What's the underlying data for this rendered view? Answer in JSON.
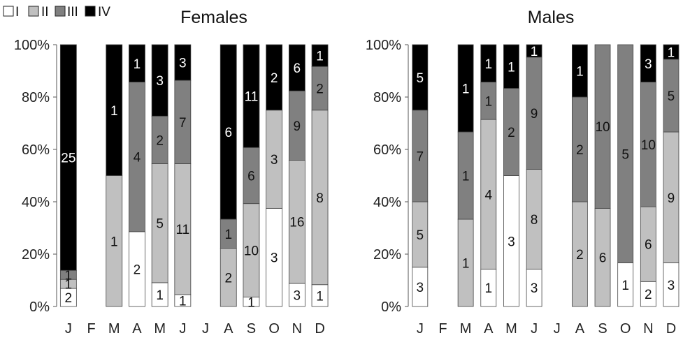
{
  "legend": {
    "entries": [
      {
        "label": "I",
        "color": "#ffffff"
      },
      {
        "label": "II",
        "color": "#c0c0c0"
      },
      {
        "label": "III",
        "color": "#808080"
      },
      {
        "label": "IV",
        "color": "#000000"
      }
    ]
  },
  "chart_data": [
    {
      "type": "bar",
      "stacked": true,
      "normalized_percent": true,
      "title": "Females",
      "categories": [
        "J",
        "F",
        "M",
        "A",
        "M",
        "J",
        "J",
        "A",
        "S",
        "O",
        "N",
        "D"
      ],
      "ylim": [
        0,
        100
      ],
      "y_ticks": [
        "0%",
        "20%",
        "40%",
        "60%",
        "80%",
        "100%"
      ],
      "grid": false,
      "series": [
        {
          "name": "I",
          "values": [
            2,
            0,
            0,
            2,
            1,
            1,
            0,
            0,
            1,
            3,
            3,
            1
          ]
        },
        {
          "name": "II",
          "values": [
            1,
            0,
            1,
            0,
            5,
            11,
            0,
            2,
            10,
            3,
            16,
            8
          ]
        },
        {
          "name": "III",
          "values": [
            1,
            0,
            0,
            4,
            2,
            7,
            0,
            1,
            6,
            0,
            9,
            2
          ]
        },
        {
          "name": "IV",
          "values": [
            25,
            0,
            1,
            1,
            3,
            3,
            0,
            6,
            11,
            2,
            6,
            1
          ]
        }
      ]
    },
    {
      "type": "bar",
      "stacked": true,
      "normalized_percent": true,
      "title": "Males",
      "categories": [
        "J",
        "F",
        "M",
        "A",
        "M",
        "J",
        "J",
        "A",
        "S",
        "O",
        "N",
        "D"
      ],
      "ylim": [
        0,
        100
      ],
      "y_ticks": [
        "0%",
        "20%",
        "40%",
        "60%",
        "80%",
        "100%"
      ],
      "grid": false,
      "series": [
        {
          "name": "I",
          "values": [
            3,
            0,
            0,
            1,
            3,
            3,
            0,
            0,
            0,
            1,
            2,
            3
          ]
        },
        {
          "name": "II",
          "values": [
            5,
            0,
            1,
            4,
            0,
            8,
            0,
            2,
            6,
            0,
            6,
            9
          ]
        },
        {
          "name": "III",
          "values": [
            7,
            0,
            1,
            1,
            2,
            9,
            0,
            2,
            10,
            5,
            10,
            5
          ]
        },
        {
          "name": "IV",
          "values": [
            5,
            0,
            1,
            1,
            1,
            1,
            0,
            1,
            0,
            0,
            3,
            1
          ]
        }
      ]
    }
  ]
}
